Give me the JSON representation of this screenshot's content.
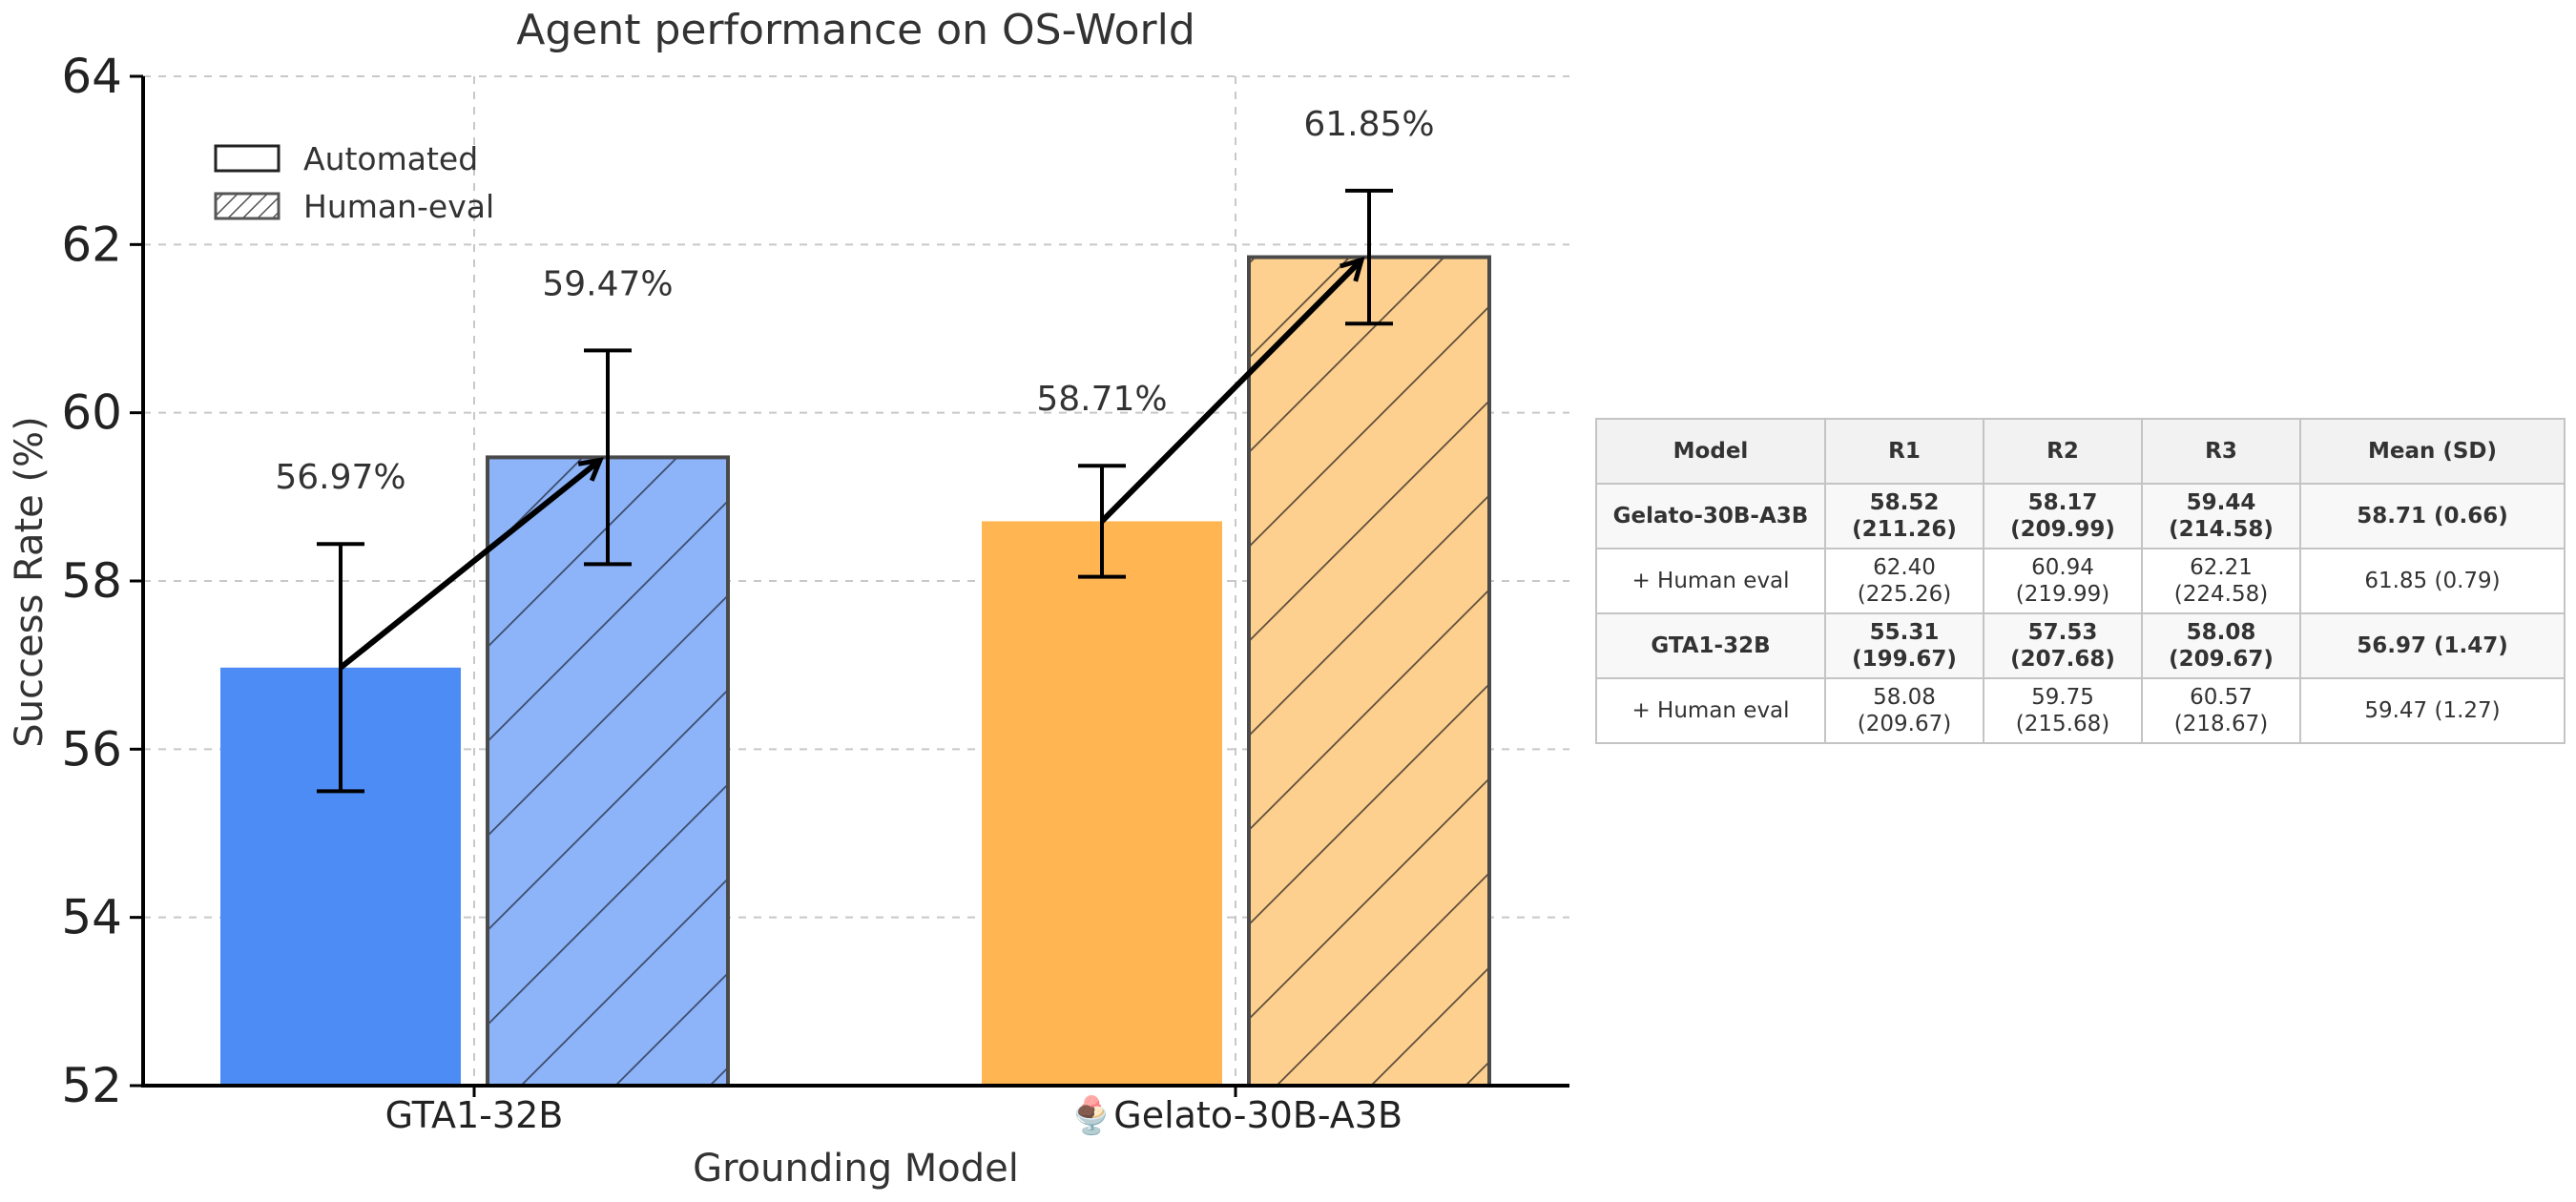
{
  "chart_data": {
    "type": "bar",
    "title": "Agent performance on OS-World",
    "xlabel": "Grounding Model",
    "ylabel": "Success Rate (%)",
    "ylim": [
      52,
      64
    ],
    "yticks": [
      52,
      54,
      56,
      58,
      60,
      62,
      64
    ],
    "categories": [
      "GTA1-32B",
      "Gelato-30B-A3B"
    ],
    "category_icons": [
      "",
      "🍨"
    ],
    "grid": true,
    "legend_position": "top-left",
    "series": [
      {
        "name": "Automated",
        "values": [
          56.97,
          58.71
        ],
        "errors": [
          1.47,
          0.66
        ],
        "value_labels": [
          "56.97%",
          "58.71%"
        ],
        "colors": [
          "#4e8cf5",
          "#ffb652"
        ],
        "hatch": false
      },
      {
        "name": "Human-eval",
        "values": [
          59.47,
          61.85
        ],
        "errors": [
          1.27,
          0.79
        ],
        "value_labels": [
          "59.47%",
          "61.85%"
        ],
        "colors": [
          "#8db3f8",
          "#fdd08f"
        ],
        "hatch": true
      }
    ],
    "arrows": [
      {
        "from": {
          "category": 0,
          "value": 56.97
        },
        "to": {
          "category": 0,
          "value": 59.47
        }
      },
      {
        "from": {
          "category": 1,
          "value": 58.71
        },
        "to": {
          "category": 1,
          "value": 61.85
        }
      }
    ]
  },
  "table": {
    "headers": [
      "Model",
      "R1",
      "R2",
      "R3",
      "Mean (SD)"
    ],
    "rows": [
      {
        "model": "Gelato-30B-A3B",
        "bold": true,
        "cells": [
          [
            "58.52",
            "(211.26)"
          ],
          [
            "58.17",
            "(209.99)"
          ],
          [
            "59.44",
            "(214.58)"
          ]
        ],
        "mean": "58.71 (0.66)"
      },
      {
        "model": "+ Human eval",
        "bold": false,
        "cells": [
          [
            "62.40",
            "(225.26)"
          ],
          [
            "60.94",
            "(219.99)"
          ],
          [
            "62.21",
            "(224.58)"
          ]
        ],
        "mean": "61.85 (0.79)"
      },
      {
        "model": "GTA1-32B",
        "bold": true,
        "cells": [
          [
            "55.31",
            "(199.67)"
          ],
          [
            "57.53",
            "(207.68)"
          ],
          [
            "58.08",
            "(209.67)"
          ]
        ],
        "mean": "56.97 (1.47)"
      },
      {
        "model": "+ Human eval",
        "bold": false,
        "cells": [
          [
            "58.08",
            "(209.67)"
          ],
          [
            "59.75",
            "(215.68)"
          ],
          [
            "60.57",
            "(218.67)"
          ]
        ],
        "mean": "59.47 (1.27)"
      }
    ]
  }
}
